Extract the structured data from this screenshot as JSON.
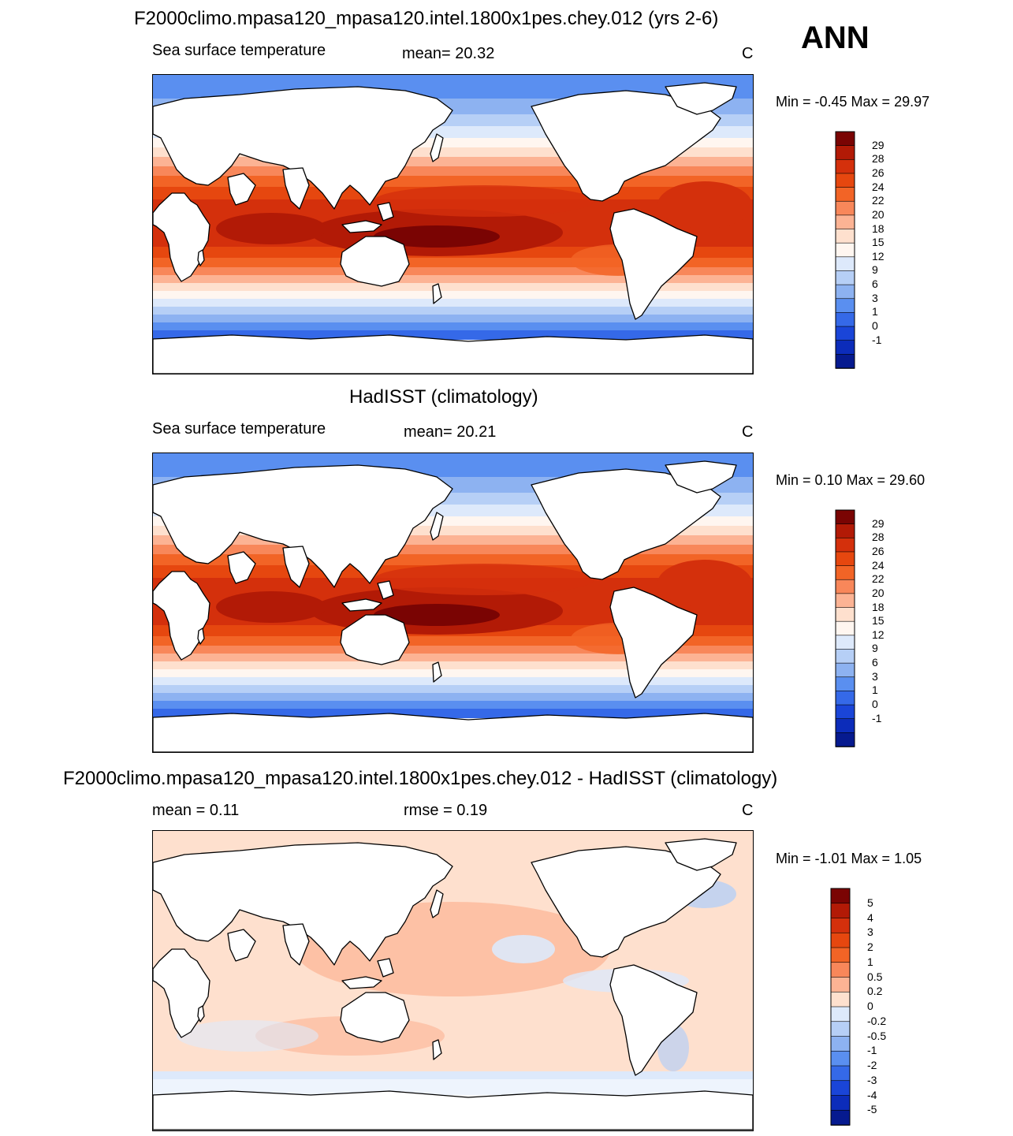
{
  "season_label": "ANN",
  "panels": [
    {
      "title": "F2000climo.mpasa120_mpasa120.intel.1800x1pes.chey.012 (yrs 2-6)",
      "left_label": "Sea surface temperature",
      "center_label": "mean=  20.32",
      "units": "C",
      "minmax": "Min =  -0.45 Max =  29.97",
      "colorbar": {
        "labels": [
          "29",
          "28",
          "26",
          "24",
          "22",
          "20",
          "18",
          "15",
          "12",
          "9",
          "6",
          "3",
          "1",
          "0",
          "-1"
        ],
        "colors": [
          "#7a0403",
          "#b21a06",
          "#d4300c",
          "#e6470f",
          "#f26426",
          "#f8875a",
          "#fcb394",
          "#fee0ce",
          "#fff6f0",
          "#dde9fb",
          "#b6cff6",
          "#8db2f1",
          "#5a8ff0",
          "#3569e8",
          "#1a45d8",
          "#0c2cba",
          "#061a8f"
        ]
      },
      "map_type": "absolute"
    },
    {
      "title": "HadISST (climatology)",
      "left_label": "Sea surface temperature",
      "center_label": "mean=  20.21",
      "units": "C",
      "minmax": "Min =   0.10 Max =  29.60",
      "colorbar": {
        "labels": [
          "29",
          "28",
          "26",
          "24",
          "22",
          "20",
          "18",
          "15",
          "12",
          "9",
          "6",
          "3",
          "1",
          "0",
          "-1"
        ],
        "colors": [
          "#7a0403",
          "#b21a06",
          "#d4300c",
          "#e6470f",
          "#f26426",
          "#f8875a",
          "#fcb394",
          "#fee0ce",
          "#fff6f0",
          "#dde9fb",
          "#b6cff6",
          "#8db2f1",
          "#5a8ff0",
          "#3569e8",
          "#1a45d8",
          "#0c2cba",
          "#061a8f"
        ]
      },
      "map_type": "absolute"
    },
    {
      "title": "F2000climo.mpasa120_mpasa120.intel.1800x1pes.chey.012 - HadISST (climatology)",
      "left_label": "mean =   0.11",
      "center_label": "rmse =   0.19",
      "units": "C",
      "minmax": "Min =  -1.01 Max =   1.05",
      "colorbar": {
        "labels": [
          "5",
          "4",
          "3",
          "2",
          "1",
          "0.5",
          "0.2",
          "0",
          "-0.2",
          "-0.5",
          "-1",
          "-2",
          "-3",
          "-4",
          "-5"
        ],
        "colors": [
          "#7a0403",
          "#b21a06",
          "#d4300c",
          "#e6470f",
          "#f26426",
          "#f8875a",
          "#fcb394",
          "#fee0ce",
          "#dde9fb",
          "#b6cff6",
          "#8db2f1",
          "#5a8ff0",
          "#3569e8",
          "#1a45d8",
          "#0c2cba",
          "#061a8f"
        ]
      },
      "map_type": "difference"
    }
  ]
}
